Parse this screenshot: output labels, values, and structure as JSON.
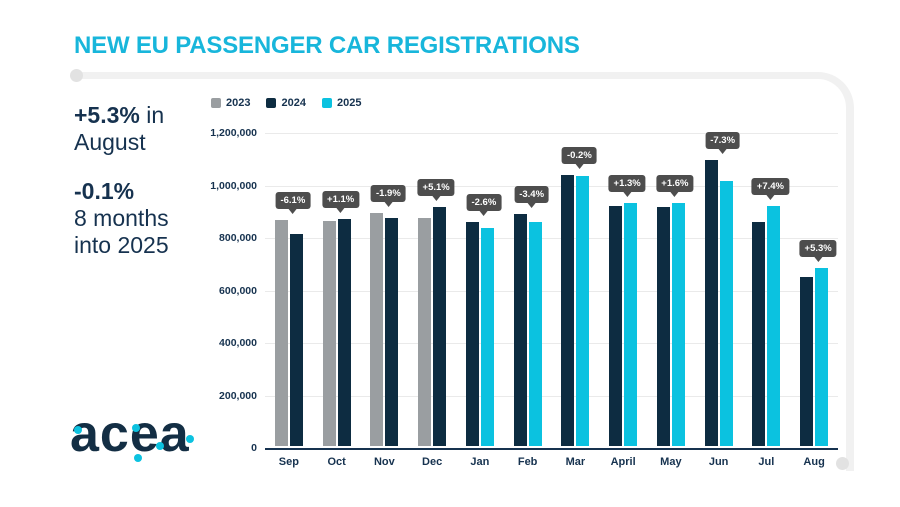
{
  "page": {
    "title": "NEW EU PASSENGER CAR REGISTRATIONS"
  },
  "stats": {
    "line1_bold": "+5.3%",
    "line1_rest": " in",
    "line2": "August",
    "line3_bold": "-0.1%",
    "line4": "8 months",
    "line5": "into 2025"
  },
  "logo": {
    "text": "acea"
  },
  "colors": {
    "accent_cyan": "#18b6db",
    "navy_text": "#16324f",
    "badge_bg": "#4d4d4d",
    "frame_gray": "#f1f1f1"
  },
  "chart_data": {
    "type": "bar",
    "title": "NEW EU PASSENGER CAR REGISTRATIONS",
    "categories": [
      "Sep",
      "Oct",
      "Nov",
      "Dec",
      "Jan",
      "Feb",
      "Mar",
      "April",
      "May",
      "Jun",
      "Jul",
      "Aug"
    ],
    "series": [
      {
        "name": "2023",
        "color": "#9a9ea1",
        "values": [
          861000,
          857000,
          886000,
          867000,
          null,
          null,
          null,
          null,
          null,
          null,
          null,
          null
        ]
      },
      {
        "name": "2024",
        "color": "#0d2c41",
        "values": [
          809000,
          866000,
          869000,
          911000,
          852000,
          884000,
          1031000,
          914000,
          912000,
          1089000,
          852000,
          644000
        ]
      },
      {
        "name": "2025",
        "color": "#0bc2e0",
        "values": [
          null,
          null,
          null,
          null,
          830000,
          854000,
          1029000,
          926000,
          927000,
          1010000,
          915000,
          678000
        ]
      }
    ],
    "change_labels": [
      "-6.1%",
      "+1.1%",
      "-1.9%",
      "+5.1%",
      "-2.6%",
      "-3.4%",
      "-0.2%",
      "+1.3%",
      "+1.6%",
      "-7.3%",
      "+7.4%",
      "+5.3%"
    ],
    "ylim": [
      0,
      1200000
    ],
    "yticks": [
      "0",
      "200,000",
      "400,000",
      "600,000",
      "800,000",
      "1,000,000",
      "1,200,000"
    ],
    "xlabel": "",
    "ylabel": "",
    "grid": true,
    "legend_position": "top-left"
  }
}
